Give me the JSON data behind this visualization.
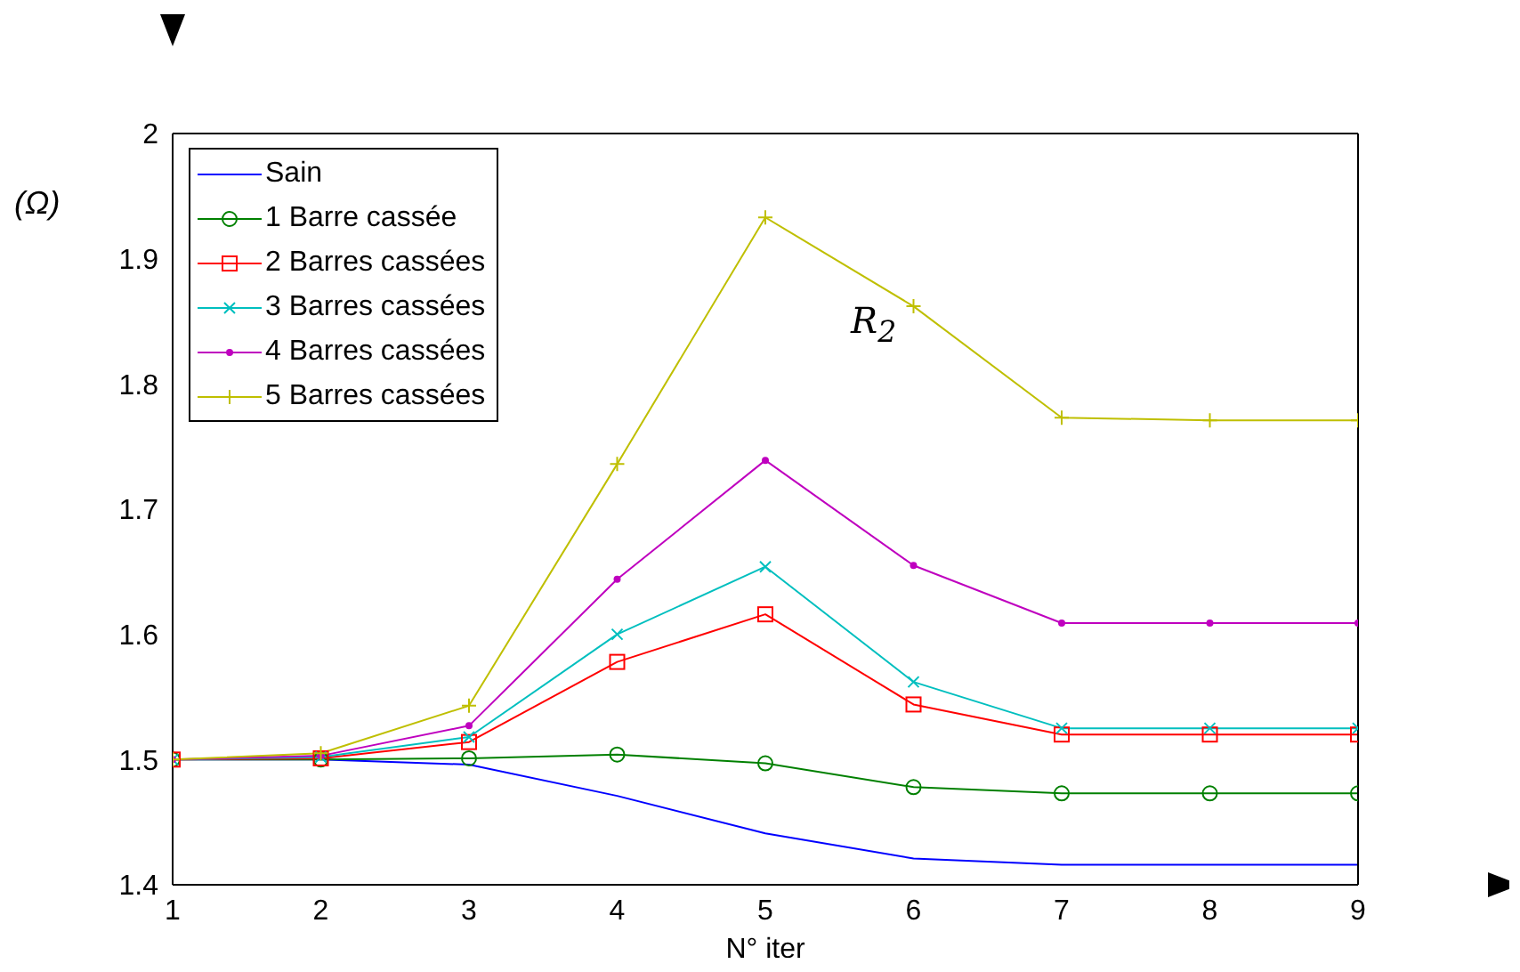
{
  "chart_data": {
    "type": "line",
    "xlabel": "N° iter",
    "ylabel": "(Ω)",
    "annotations": [
      "R$_{2}$"
    ],
    "x": [
      1,
      2,
      3,
      4,
      5,
      6,
      7,
      8,
      9
    ],
    "series": [
      {
        "name": "Sain",
        "color": "#0000ff",
        "marker": "none",
        "values": [
          1.5,
          1.5,
          1.496,
          1.471,
          1.441,
          1.421,
          1.416,
          1.416,
          1.416
        ]
      },
      {
        "name": "1 Barre cassée",
        "color": "#008000",
        "marker": "circle",
        "values": [
          1.5,
          1.5,
          1.501,
          1.504,
          1.497,
          1.478,
          1.473,
          1.473,
          1.473
        ]
      },
      {
        "name": "2 Barres cassées",
        "color": "#ff0000",
        "marker": "square",
        "values": [
          1.5,
          1.501,
          1.514,
          1.578,
          1.616,
          1.544,
          1.52,
          1.52,
          1.52
        ]
      },
      {
        "name": "3 Barres cassées",
        "color": "#00bfbf",
        "marker": "x",
        "values": [
          1.5,
          1.502,
          1.518,
          1.6,
          1.654,
          1.562,
          1.525,
          1.525,
          1.525
        ]
      },
      {
        "name": "4 Barres cassées",
        "color": "#bf00bf",
        "marker": "point",
        "values": [
          1.5,
          1.503,
          1.527,
          1.644,
          1.739,
          1.655,
          1.609,
          1.609,
          1.609
        ]
      },
      {
        "name": "5 Barres cassées",
        "color": "#bfbf00",
        "marker": "cross",
        "values": [
          1.5,
          1.505,
          1.543,
          1.736,
          1.933,
          1.862,
          1.773,
          1.771,
          1.771
        ]
      }
    ],
    "xlim": [
      1,
      9
    ],
    "xticks": [
      1,
      2,
      3,
      4,
      5,
      6,
      7,
      8,
      9
    ],
    "ylim": [
      1.4,
      2
    ],
    "yticks": [
      1.4,
      1.5,
      1.6,
      1.7,
      1.8,
      1.9,
      2
    ],
    "grid": false,
    "legend": "top left",
    "line_style": "solid"
  }
}
